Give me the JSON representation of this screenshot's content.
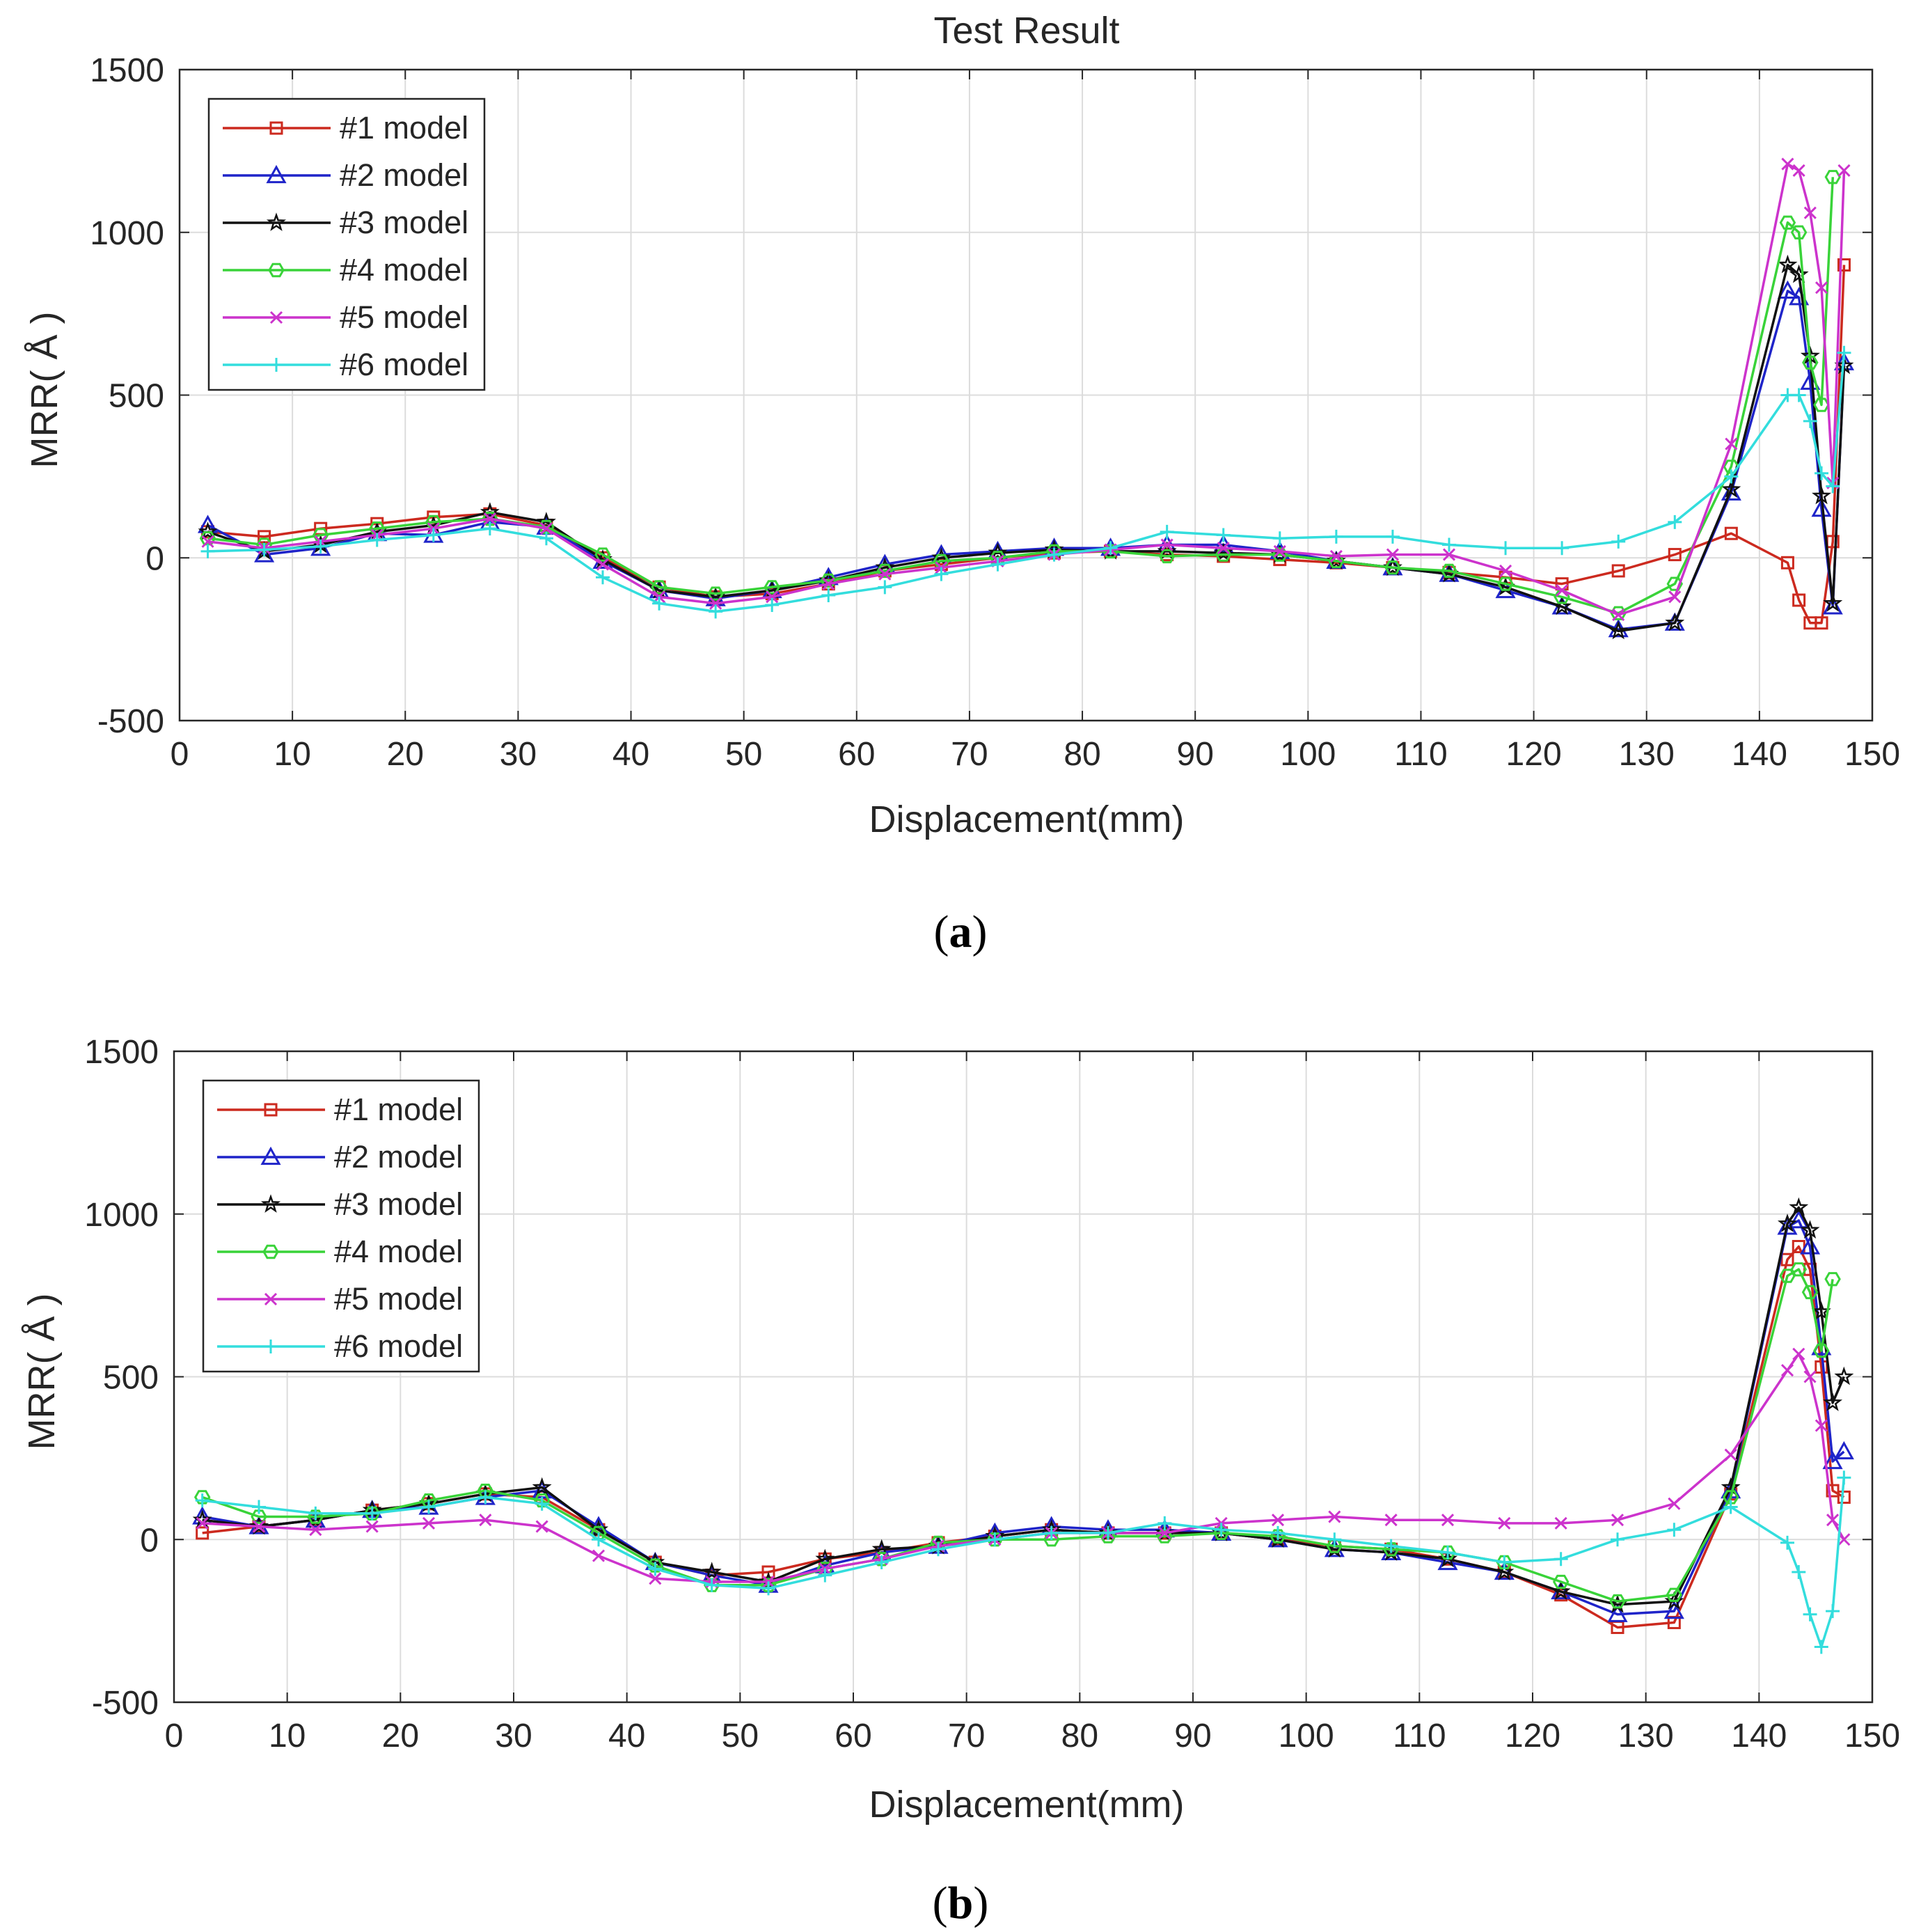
{
  "chart_data": [
    {
      "type": "line",
      "panel_label": "a",
      "title": "Test Result",
      "xlabel": "Displacement(mm)",
      "ylabel": "MRR( Å )",
      "xlim": [
        0,
        150
      ],
      "ylim": [
        -500,
        1500
      ],
      "xticks": [
        0,
        10,
        20,
        30,
        40,
        50,
        60,
        70,
        80,
        90,
        100,
        110,
        120,
        130,
        140,
        150
      ],
      "yticks": [
        -500,
        0,
        500,
        1000,
        1500
      ],
      "grid": true,
      "legend_position": "top-left",
      "x": [
        2.5,
        7.5,
        12.5,
        17.5,
        22.5,
        27.5,
        32.5,
        37.5,
        42.5,
        47.5,
        52.5,
        57.5,
        62.5,
        67.5,
        72.5,
        77.5,
        82.5,
        87.5,
        92.5,
        97.5,
        102.5,
        107.5,
        112.5,
        117.5,
        122.5,
        127.5,
        132.5,
        137.5,
        142.5,
        143.5,
        144.5,
        145.5,
        146.5,
        147.5,
        148.5,
        149.0
      ],
      "series": [
        {
          "name": "#1 model",
          "color": "#cc2a1f",
          "marker": "square",
          "values": [
            80,
            65,
            90,
            105,
            125,
            135,
            100,
            0,
            -90,
            -120,
            -110,
            -80,
            -40,
            -20,
            0,
            15,
            20,
            10,
            5,
            -5,
            -15,
            -30,
            -45,
            -60,
            -80,
            -40,
            10,
            75,
            -15,
            -130,
            -200,
            -200,
            50,
            900,
            null,
            null
          ]
        },
        {
          "name": "#2 model",
          "color": "#1f24c9",
          "marker": "triangle",
          "values": [
            100,
            10,
            30,
            75,
            70,
            110,
            95,
            -10,
            -100,
            -125,
            -100,
            -60,
            -20,
            10,
            20,
            30,
            30,
            40,
            40,
            20,
            -10,
            -30,
            -50,
            -100,
            -150,
            -220,
            -200,
            200,
            820,
            800,
            540,
            150,
            -150,
            600,
            null,
            null
          ]
        },
        {
          "name": "#3 model",
          "color": "#111111",
          "marker": "star",
          "values": [
            80,
            20,
            40,
            80,
            100,
            140,
            110,
            -5,
            -100,
            -120,
            -100,
            -70,
            -30,
            0,
            15,
            25,
            20,
            20,
            15,
            10,
            -10,
            -30,
            -50,
            -90,
            -150,
            -225,
            -200,
            210,
            900,
            870,
            620,
            190,
            -140,
            590,
            null,
            null
          ]
        },
        {
          "name": "#4 model",
          "color": "#39d339",
          "marker": "hexagon",
          "values": [
            60,
            40,
            70,
            90,
            110,
            120,
            95,
            10,
            -90,
            -110,
            -90,
            -70,
            -40,
            -10,
            0,
            20,
            20,
            5,
            10,
            10,
            -10,
            -30,
            -40,
            -80,
            -120,
            -170,
            -80,
            280,
            1030,
            1000,
            600,
            470,
            1170,
            null,
            null,
            null
          ]
        },
        {
          "name": "#5 model",
          "color": "#cc33cc",
          "marker": "x",
          "values": [
            50,
            30,
            50,
            70,
            90,
            120,
            90,
            -20,
            -120,
            -140,
            -120,
            -80,
            -50,
            -30,
            -10,
            10,
            25,
            40,
            30,
            20,
            5,
            10,
            10,
            -40,
            -100,
            -175,
            -120,
            350,
            1210,
            1190,
            1060,
            830,
            230,
            1190,
            null,
            null
          ]
        },
        {
          "name": "#6 model",
          "color": "#33dddd",
          "marker": "plus",
          "values": [
            20,
            25,
            35,
            55,
            70,
            90,
            60,
            -60,
            -140,
            -165,
            -145,
            -115,
            -90,
            -50,
            -20,
            10,
            30,
            80,
            70,
            60,
            65,
            65,
            40,
            30,
            30,
            50,
            110,
            250,
            500,
            500,
            420,
            260,
            220,
            630,
            null,
            null
          ]
        }
      ]
    },
    {
      "type": "line",
      "panel_label": "b",
      "title": "",
      "xlabel": "Displacement(mm)",
      "ylabel": "MRR( Å )",
      "xlim": [
        0,
        150
      ],
      "ylim": [
        -500,
        1500
      ],
      "xticks": [
        0,
        10,
        20,
        30,
        40,
        50,
        60,
        70,
        80,
        90,
        100,
        110,
        120,
        130,
        140,
        150
      ],
      "yticks": [
        -500,
        0,
        500,
        1000,
        1500
      ],
      "grid": true,
      "legend_position": "top-left",
      "x": [
        2.5,
        7.5,
        12.5,
        17.5,
        22.5,
        27.5,
        32.5,
        37.5,
        42.5,
        47.5,
        52.5,
        57.5,
        62.5,
        67.5,
        72.5,
        77.5,
        82.5,
        87.5,
        92.5,
        97.5,
        102.5,
        107.5,
        112.5,
        117.5,
        122.5,
        127.5,
        132.5,
        137.5,
        142.5,
        143.5,
        144.5,
        145.5,
        146.5,
        147.5,
        148.5,
        149.0
      ],
      "series": [
        {
          "name": "#1 model",
          "color": "#cc2a1f",
          "marker": "square",
          "values": [
            20,
            40,
            60,
            90,
            110,
            140,
            130,
            30,
            -70,
            -110,
            -100,
            -60,
            -40,
            -10,
            10,
            30,
            20,
            20,
            20,
            0,
            -20,
            -30,
            -60,
            -100,
            -170,
            -270,
            -255,
            140,
            860,
            900,
            830,
            530,
            150,
            130,
            null,
            null
          ]
        },
        {
          "name": "#2 model",
          "color": "#1f24c9",
          "marker": "triangle",
          "values": [
            70,
            40,
            60,
            90,
            100,
            130,
            150,
            40,
            -70,
            -110,
            -140,
            -80,
            -40,
            -20,
            20,
            40,
            30,
            30,
            20,
            0,
            -30,
            -40,
            -70,
            -100,
            -160,
            -230,
            -220,
            150,
            960,
            980,
            900,
            590,
            240,
            270,
            null,
            null
          ]
        },
        {
          "name": "#3 model",
          "color": "#111111",
          "marker": "star",
          "values": [
            60,
            40,
            60,
            90,
            110,
            140,
            160,
            30,
            -70,
            -100,
            -130,
            -60,
            -30,
            -20,
            10,
            30,
            20,
            20,
            20,
            0,
            -30,
            -40,
            -60,
            -100,
            -160,
            -200,
            -190,
            160,
            970,
            1020,
            950,
            700,
            420,
            500,
            null,
            null
          ]
        },
        {
          "name": "#4 model",
          "color": "#39d339",
          "marker": "hexagon",
          "values": [
            130,
            70,
            70,
            80,
            120,
            150,
            120,
            20,
            -80,
            -140,
            -140,
            -90,
            -60,
            -10,
            0,
            0,
            10,
            10,
            20,
            10,
            -20,
            -30,
            -40,
            -70,
            -130,
            -190,
            -170,
            130,
            810,
            830,
            760,
            580,
            800,
            null,
            null,
            null
          ]
        },
        {
          "name": "#5 model",
          "color": "#cc33cc",
          "marker": "x",
          "values": [
            50,
            40,
            30,
            40,
            50,
            60,
            40,
            -50,
            -120,
            -130,
            -130,
            -90,
            -60,
            -20,
            0,
            20,
            20,
            20,
            50,
            60,
            70,
            60,
            60,
            50,
            50,
            60,
            110,
            260,
            520,
            570,
            500,
            350,
            60,
            0,
            null,
            null
          ]
        },
        {
          "name": "#6 model",
          "color": "#33dddd",
          "marker": "plus",
          "values": [
            120,
            100,
            80,
            80,
            100,
            130,
            110,
            0,
            -90,
            -140,
            -150,
            -110,
            -70,
            -30,
            0,
            20,
            20,
            50,
            30,
            20,
            0,
            -20,
            -40,
            -70,
            -60,
            0,
            30,
            100,
            -10,
            -100,
            -230,
            -330,
            -220,
            190,
            null,
            null
          ]
        }
      ]
    }
  ]
}
